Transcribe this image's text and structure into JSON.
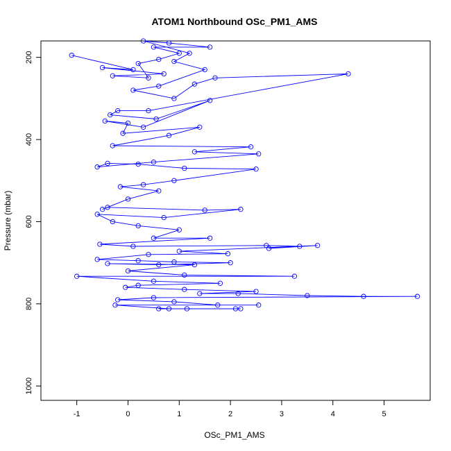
{
  "chart_data": {
    "type": "line",
    "title": "ATOM1 Northbound OSc_PM1_AMS",
    "xlabel": "OSc_PM1_AMS",
    "ylabel": "Pressure (mbar)",
    "xlim": [
      -1.7,
      5.9
    ],
    "ylim": [
      1035,
      160
    ],
    "y_reversed": true,
    "x_ticks": [
      -1,
      0,
      1,
      2,
      3,
      4,
      5
    ],
    "y_ticks": [
      200,
      400,
      600,
      800,
      1000
    ],
    "grid": false,
    "legend": "none",
    "markers": "open-circle",
    "series": [
      {
        "color": "#0000ff",
        "points": [
          [
            -1.1,
            195
          ],
          [
            0.1,
            230
          ],
          [
            -0.5,
            225
          ],
          [
            0.7,
            240
          ],
          [
            -0.3,
            245
          ],
          [
            0.4,
            250
          ],
          [
            0.2,
            215
          ],
          [
            0.6,
            205
          ],
          [
            1.0,
            190
          ],
          [
            0.5,
            175
          ],
          [
            1.6,
            175
          ],
          [
            0.8,
            165
          ],
          [
            0.3,
            160
          ],
          [
            1.2,
            190
          ],
          [
            0.9,
            210
          ],
          [
            1.5,
            230
          ],
          [
            0.6,
            270
          ],
          [
            0.1,
            280
          ],
          [
            0.9,
            300
          ],
          [
            1.3,
            265
          ],
          [
            1.7,
            250
          ],
          [
            4.3,
            240
          ],
          [
            0.4,
            330
          ],
          [
            -0.2,
            330
          ],
          [
            -0.35,
            340
          ],
          [
            0.55,
            350
          ],
          [
            1.6,
            305
          ],
          [
            0.3,
            370
          ],
          [
            -0.45,
            355
          ],
          [
            0.0,
            360
          ],
          [
            -0.1,
            385
          ],
          [
            1.4,
            370
          ],
          [
            0.8,
            390
          ],
          [
            -0.3,
            415
          ],
          [
            2.4,
            418
          ],
          [
            1.3,
            430
          ],
          [
            2.55,
            435
          ],
          [
            0.5,
            455
          ],
          [
            -0.6,
            467
          ],
          [
            -0.4,
            458
          ],
          [
            0.2,
            460
          ],
          [
            1.1,
            470
          ],
          [
            2.5,
            472
          ],
          [
            0.9,
            500
          ],
          [
            0.3,
            510
          ],
          [
            -0.15,
            515
          ],
          [
            0.6,
            525
          ],
          [
            0.0,
            545
          ],
          [
            -0.5,
            570
          ],
          [
            -0.4,
            565
          ],
          [
            1.5,
            572
          ],
          [
            2.2,
            570
          ],
          [
            0.7,
            590
          ],
          [
            -0.6,
            582
          ],
          [
            -0.3,
            600
          ],
          [
            0.2,
            610
          ],
          [
            1.0,
            620
          ],
          [
            0.5,
            640
          ],
          [
            1.6,
            640
          ],
          [
            -0.55,
            655
          ],
          [
            0.1,
            660
          ],
          [
            2.7,
            658
          ],
          [
            3.35,
            660
          ],
          [
            2.75,
            665
          ],
          [
            3.7,
            658
          ],
          [
            1.0,
            672
          ],
          [
            1.95,
            678
          ],
          [
            0.4,
            680
          ],
          [
            -0.6,
            692
          ],
          [
            0.2,
            695
          ],
          [
            0.9,
            698
          ],
          [
            2.0,
            700
          ],
          [
            0.6,
            705
          ],
          [
            -0.4,
            702
          ],
          [
            1.3,
            705
          ],
          [
            0.0,
            720
          ],
          [
            1.1,
            730
          ],
          [
            3.25,
            733
          ],
          [
            -1.0,
            733
          ],
          [
            0.5,
            745
          ],
          [
            1.8,
            750
          ],
          [
            0.2,
            755
          ],
          [
            -0.05,
            760
          ],
          [
            1.1,
            765
          ],
          [
            2.5,
            770
          ],
          [
            1.4,
            775
          ],
          [
            2.15,
            775
          ],
          [
            3.5,
            780
          ],
          [
            4.6,
            782
          ],
          [
            5.65,
            782
          ],
          [
            0.5,
            785
          ],
          [
            -0.2,
            790
          ],
          [
            0.9,
            795
          ],
          [
            1.75,
            803
          ],
          [
            2.55,
            803
          ],
          [
            -0.25,
            803
          ],
          [
            0.8,
            812
          ],
          [
            2.1,
            812
          ],
          [
            1.15,
            812
          ],
          [
            0.6,
            812
          ],
          [
            2.2,
            812
          ]
        ]
      }
    ]
  }
}
